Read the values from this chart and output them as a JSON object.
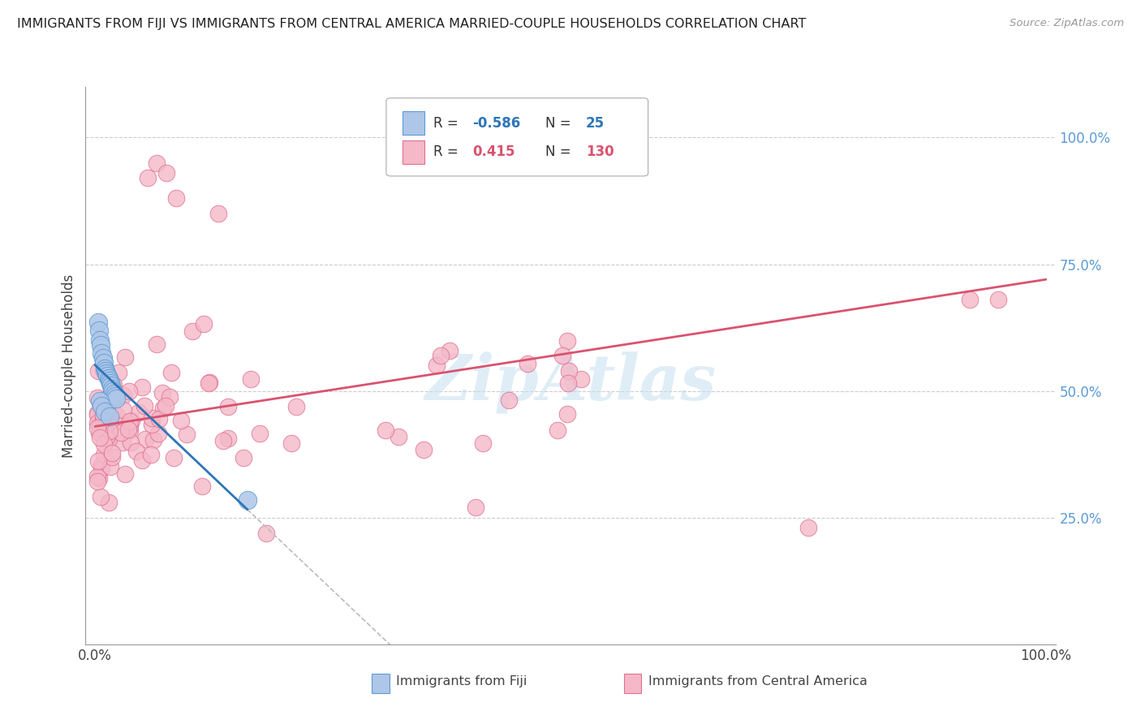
{
  "title": "IMMIGRANTS FROM FIJI VS IMMIGRANTS FROM CENTRAL AMERICA MARRIED-COUPLE HOUSEHOLDS CORRELATION CHART",
  "source": "Source: ZipAtlas.com",
  "ylabel": "Married-couple Households",
  "ytick_values": [
    0.25,
    0.5,
    0.75,
    1.0
  ],
  "fiji_R": -0.586,
  "fiji_N": 25,
  "central_R": 0.415,
  "central_N": 130,
  "fiji_color": "#aec6e8",
  "fiji_edge_color": "#5b9bd5",
  "fiji_line_color": "#2e75b6",
  "central_color": "#f4b8c8",
  "central_edge_color": "#e07090",
  "central_line_color": "#d9536f",
  "watermark_color": "#c5dff0",
  "bg_color": "#ffffff",
  "grid_color": "#cccccc"
}
